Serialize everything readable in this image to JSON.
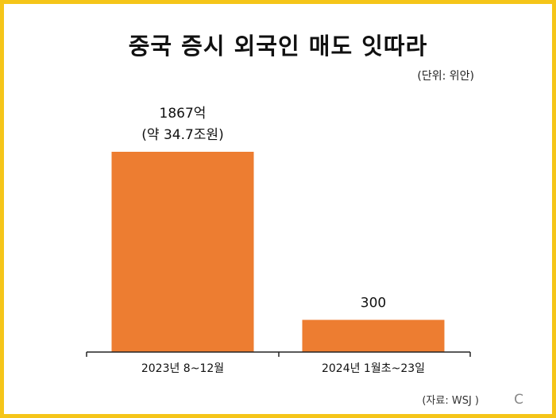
{
  "chart_data": {
    "type": "bar",
    "title": "중국 증시 외국인 매도 잇따라",
    "unit_label": "(단위: 위안)",
    "categories": [
      "2023년 8~12월",
      "2024년 1월초~23일"
    ],
    "values": [
      1867,
      300
    ],
    "value_labels": [
      [
        "1867억",
        "(약 34.7조원)"
      ],
      [
        "300"
      ]
    ],
    "source": "(자료: WSJ )",
    "bar_color": "#ed7d31",
    "ylim": [
      0,
      1867
    ],
    "grid": false,
    "legend": "none"
  },
  "logo_text": "C"
}
